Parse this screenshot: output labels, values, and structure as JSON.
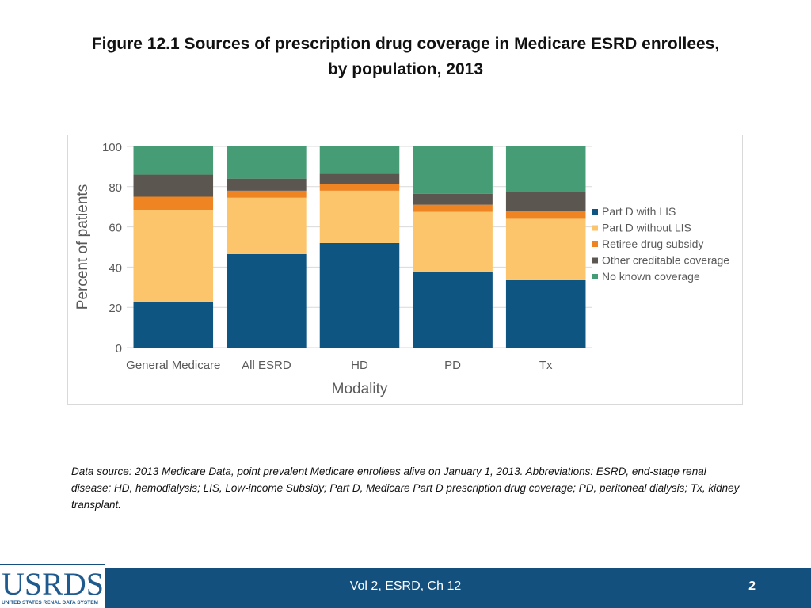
{
  "title": {
    "line1": "Figure 12.1 Sources of prescription drug coverage in Medicare ESRD enrollees,",
    "line2": "by population, 2013"
  },
  "chart_data": {
    "type": "bar",
    "stacked": true,
    "categories": [
      "General Medicare",
      "All ESRD",
      "HD",
      "PD",
      "Tx"
    ],
    "series": [
      {
        "name": "Part D with LIS",
        "color": "#0f5582",
        "values": [
          22.5,
          46.5,
          52,
          37.5,
          33.5
        ]
      },
      {
        "name": "Part D without LIS",
        "color": "#fcc56c",
        "values": [
          46,
          28,
          26,
          30,
          30.5
        ]
      },
      {
        "name": "Retiree drug subsidy",
        "color": "#ef8422",
        "values": [
          6.5,
          3.5,
          3.5,
          3.5,
          4
        ]
      },
      {
        "name": "Other creditable coverage",
        "color": "#5c5650",
        "values": [
          11,
          6,
          5,
          5.5,
          9.5
        ]
      },
      {
        "name": "No known coverage",
        "color": "#469c74",
        "values": [
          14,
          16,
          13.5,
          23.5,
          22.5
        ]
      }
    ],
    "xlabel": "Modality",
    "ylabel": "Percent of patients",
    "ylim": [
      0,
      100
    ],
    "yticks": [
      0,
      20,
      40,
      60,
      80,
      100
    ],
    "grid": true,
    "legend": "right"
  },
  "footnote": "Data source: 2013 Medicare Data, point prevalent Medicare enrollees alive on January 1, 2013. Abbreviations: ESRD, end-stage renal disease; HD, hemodialysis; LIS, Low-income Subsidy; Part D, Medicare Part D prescription drug coverage; PD, peritoneal dialysis; Tx, kidney transplant.",
  "footer": {
    "label": "Vol 2, ESRD, Ch 12",
    "page": "2"
  },
  "logo": {
    "name": "USRDS",
    "subtitle": "UNITED STATES RENAL DATA SYSTEM"
  }
}
